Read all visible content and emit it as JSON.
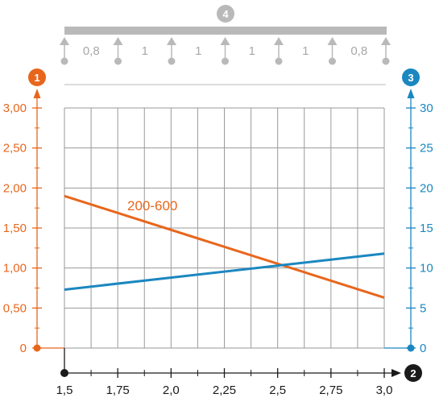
{
  "colors": {
    "left_axis": "#e8661c",
    "right_axis": "#1b87c0",
    "beam": "#b9b9b9",
    "grid": "#9a9a9a",
    "x_axis": "#1a1a1a",
    "badge_dark": "#1a1a1a"
  },
  "badges": {
    "left_axis": "1",
    "x_axis": "2",
    "right_axis": "3",
    "beam": "4"
  },
  "beam": {
    "span_labels": [
      "0,8",
      "1",
      "1",
      "1",
      "1",
      "0,8"
    ]
  },
  "chart_data": {
    "type": "line",
    "x_ticks": [
      "1,5",
      "1,75",
      "2,0",
      "2,25",
      "2,5",
      "2,75",
      "3,0"
    ],
    "xlim": [
      1.5,
      3.0
    ],
    "left_ticks": [
      "0",
      "0,50",
      "1,00",
      "1,50",
      "2,00",
      "2,50",
      "3,00"
    ],
    "left_ylim": [
      0,
      3.0
    ],
    "right_ticks": [
      "0",
      "5",
      "10",
      "15",
      "20",
      "25",
      "30"
    ],
    "right_ylim": [
      0,
      30
    ],
    "grid": true,
    "series": [
      {
        "name": "200-600",
        "axis": "left",
        "color": "#e8661c",
        "x": [
          1.5,
          3.0
        ],
        "y": [
          1.9,
          0.63
        ]
      },
      {
        "name": "",
        "axis": "right",
        "color": "#1b87c0",
        "x": [
          1.5,
          3.0
        ],
        "y": [
          7.3,
          11.8
        ]
      }
    ]
  }
}
